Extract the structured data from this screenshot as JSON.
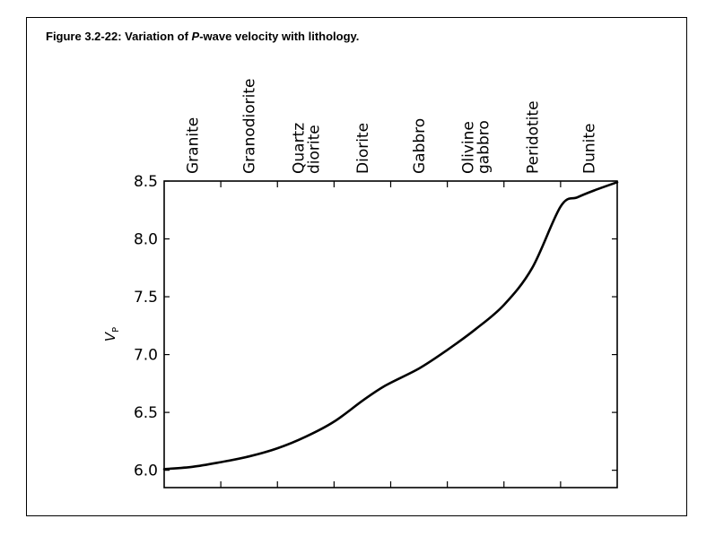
{
  "figure": {
    "title_prefix": "Figure 3.2-22: Variation of ",
    "title_italic": "P",
    "title_suffix": "-wave velocity with lithology."
  },
  "chart_data": {
    "type": "line",
    "title": "Figure 3.2-22: Variation of P-wave velocity with lithology.",
    "ylabel": "V",
    "ylabel_sub": "P",
    "ylim": [
      5.85,
      8.5
    ],
    "yticks": [
      6.0,
      6.5,
      7.0,
      7.5,
      8.0,
      8.5
    ],
    "ytick_labels": [
      "6.0",
      "6.5",
      "7.0",
      "7.5",
      "8.0",
      "8.5"
    ],
    "categories": [
      [
        "Granite"
      ],
      [
        "Granodiorite"
      ],
      [
        "Quartz",
        "diorite"
      ],
      [
        "Diorite"
      ],
      [
        "Gabbro"
      ],
      [
        "Olivine",
        "gabbro"
      ],
      [
        "Peridotite"
      ],
      [
        "Dunite"
      ]
    ],
    "x_range": [
      0,
      8
    ],
    "x": [
      0,
      0.5,
      1.0,
      1.5,
      2.0,
      2.5,
      3.0,
      3.5,
      3.9,
      4.5,
      5.0,
      5.5,
      6.0,
      6.5,
      7.0,
      7.3,
      7.6,
      8.0
    ],
    "values": [
      6.01,
      6.03,
      6.07,
      6.12,
      6.19,
      6.29,
      6.42,
      6.6,
      6.73,
      6.88,
      7.04,
      7.22,
      7.43,
      7.75,
      8.28,
      8.36,
      8.42,
      8.49
    ],
    "colors": {
      "line": "#000000",
      "axis": "#000000"
    }
  }
}
